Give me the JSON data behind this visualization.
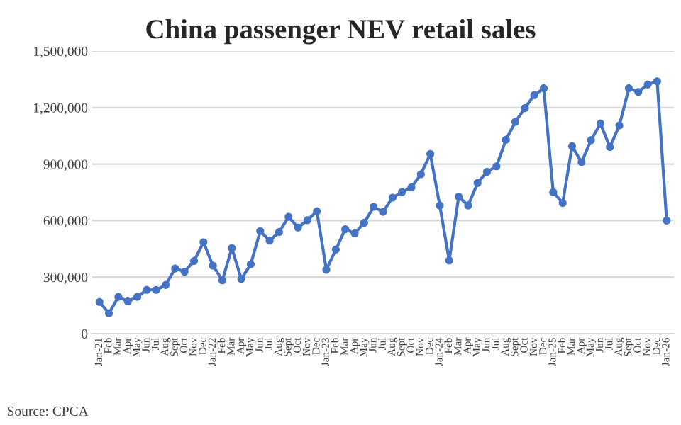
{
  "chart_data": {
    "type": "line",
    "title": "China passenger NEV retail sales",
    "categories": [
      "Jan-21",
      "Feb",
      "Mar",
      "Apr",
      "May",
      "Jun",
      "Jul",
      "Aug",
      "Sept",
      "Oct",
      "Nov",
      "Dec",
      "Jan-22",
      "Feb",
      "Mar",
      "Apr",
      "May",
      "Jun",
      "Jul",
      "Aug",
      "Sept",
      "Oct",
      "Nov",
      "Dec",
      "Jan-23",
      "Feb",
      "Mar",
      "Apr",
      "May",
      "Jun",
      "Jul",
      "Aug",
      "Sept",
      "Oct",
      "Nov",
      "Dec",
      "Jan-24",
      "Feb",
      "Mar",
      "Apr",
      "May",
      "Jun",
      "Jul",
      "Aug",
      "Sept",
      "Oct",
      "Nov",
      "Dec",
      "Jan-25",
      "Feb",
      "Mar",
      "Apr",
      "May",
      "Jun",
      "Jul",
      "Aug",
      "Sept",
      "Oct",
      "Nov",
      "Dec",
      "Jan-26"
    ],
    "series": [
      {
        "color": "#4472c4",
        "values": [
          168000,
          108000,
          195000,
          171000,
          195000,
          232000,
          232000,
          258000,
          346000,
          329000,
          385000,
          485000,
          361000,
          283000,
          454000,
          290000,
          368000,
          544000,
          493000,
          539000,
          620000,
          563000,
          602000,
          649000,
          339000,
          446000,
          554000,
          532000,
          588000,
          673000,
          646000,
          722000,
          751000,
          776000,
          846000,
          954000,
          680000,
          388000,
          727000,
          680000,
          800000,
          859000,
          888000,
          1029000,
          1124000,
          1197000,
          1266000,
          1302000,
          751000,
          693000,
          995000,
          910000,
          1027000,
          1115000,
          990000,
          1105000,
          1302000,
          1283000,
          1322000,
          1339000,
          600000
        ]
      }
    ],
    "ylim": [
      0,
      1500000
    ],
    "yticks": [
      0,
      {
        "value": 300000,
        "label": "300,000"
      },
      {
        "value": 600000,
        "label": "600,000"
      },
      {
        "value": 900000,
        "label": "900,000"
      },
      {
        "value": 1200000,
        "label": "1,200,000"
      },
      {
        "value": 1500000,
        "label": "1,500,000"
      }
    ],
    "grid": "y",
    "marker": "circle",
    "line_style": "solid",
    "annotations": [
      "Source: CPCA"
    ]
  }
}
